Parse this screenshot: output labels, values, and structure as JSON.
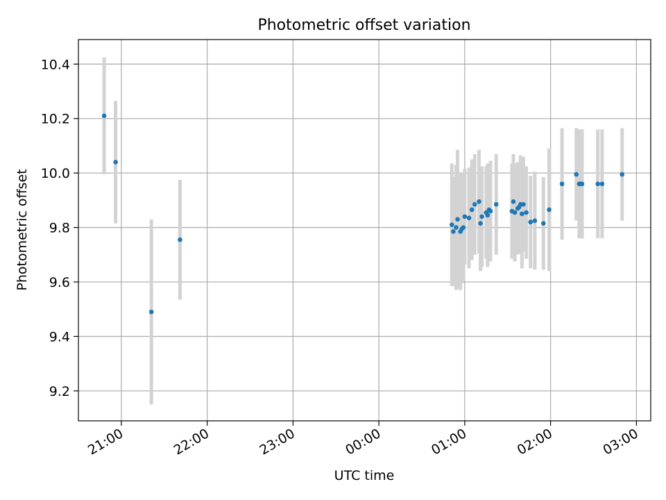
{
  "chart_data": {
    "type": "scatter",
    "title": "Photometric offset variation",
    "xlabel": "UTC time",
    "ylabel": "Photometric offset",
    "x_unit": "UTC time of day; times after midnight are on the following day",
    "xlim": [
      "20:30",
      "03:10"
    ],
    "ylim": [
      9.09,
      10.49
    ],
    "x_ticks": [
      "21:00",
      "22:00",
      "23:00",
      "00:00",
      "01:00",
      "02:00",
      "03:00"
    ],
    "y_ticks": [
      9.2,
      9.4,
      9.6,
      9.8,
      10.0,
      10.2,
      10.4
    ],
    "y_tick_labels": [
      "9.2",
      "9.4",
      "9.6",
      "9.8",
      "10.0",
      "10.2",
      "10.4"
    ],
    "grid": true,
    "legend": "none",
    "colors": {
      "points": "#1f77b4",
      "errorbars": "#d3d3d3",
      "grid": "#b0b0b0"
    },
    "series": [
      {
        "x": [
          "20:48",
          "20:56",
          "21:21",
          "21:41",
          "00:51",
          "00:52",
          "00:54",
          "00:55",
          "00:57",
          "00:58",
          "00:59",
          "01:00",
          "01:03",
          "01:05",
          "01:07",
          "01:10",
          "01:11",
          "01:12",
          "01:15",
          "01:16",
          "01:17",
          "01:18",
          "01:22",
          "01:33",
          "01:34",
          "01:35",
          "01:37",
          "01:38",
          "01:39",
          "01:40",
          "01:41",
          "01:43",
          "01:46",
          "01:49",
          "01:55",
          "01:59",
          "02:08",
          "02:18",
          "02:20",
          "02:21",
          "02:22",
          "02:33",
          "02:36",
          "02:50"
        ],
        "y": [
          10.21,
          10.04,
          9.49,
          9.755,
          9.81,
          9.785,
          9.8,
          9.83,
          9.785,
          9.795,
          9.8,
          9.84,
          9.835,
          9.865,
          9.885,
          9.895,
          9.815,
          9.84,
          9.855,
          9.845,
          9.865,
          9.86,
          9.885,
          9.86,
          9.895,
          9.855,
          9.87,
          9.875,
          9.885,
          9.85,
          9.885,
          9.855,
          9.82,
          9.825,
          9.815,
          9.865,
          9.96,
          9.995,
          9.96,
          9.96,
          9.96,
          9.96,
          9.96,
          9.995
        ],
        "err": [
          0.215,
          0.225,
          0.34,
          0.22,
          0.225,
          0.2,
          0.23,
          0.255,
          0.215,
          0.2,
          0.195,
          0.175,
          0.185,
          0.185,
          0.185,
          0.19,
          0.175,
          0.185,
          0.17,
          0.19,
          0.17,
          0.185,
          0.185,
          0.175,
          0.175,
          0.18,
          0.17,
          0.16,
          0.18,
          0.2,
          0.175,
          0.17,
          0.17,
          0.18,
          0.17,
          0.225,
          0.205,
          0.17,
          0.2,
          0.2,
          0.2,
          0.2,
          0.2,
          0.17
        ]
      }
    ]
  }
}
